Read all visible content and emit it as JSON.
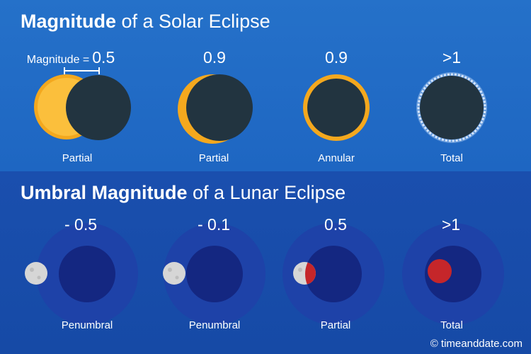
{
  "solar": {
    "title_bold": "Magnitude",
    "title_rest": " of a Solar Eclipse",
    "magnitude_label": "Magnitude =",
    "items": [
      {
        "value": "0.5",
        "caption": "Partial"
      },
      {
        "value": "0.9",
        "caption": "Partial"
      },
      {
        "value": "0.9",
        "caption": "Annular"
      },
      {
        "value": ">1",
        "caption": "Total"
      }
    ]
  },
  "lunar": {
    "title_bold": "Umbral Magnitude",
    "title_rest": " of a Lunar Eclipse",
    "items": [
      {
        "value": "- 0.5",
        "caption": "Penumbral"
      },
      {
        "value": "- 0.1",
        "caption": "Penumbral"
      },
      {
        "value": "0.5",
        "caption": "Partial"
      },
      {
        "value": ">1",
        "caption": "Total"
      }
    ]
  },
  "credit": "© timeanddate.com",
  "colors": {
    "sun": "#fbbf3c",
    "sun_ring": "#f4a81e",
    "moon_dark": "#223440",
    "penumbra": "#1e42a8",
    "umbra": "#142781",
    "moon_grey": "#d6d6d6",
    "moon_red": "#c5262a"
  }
}
